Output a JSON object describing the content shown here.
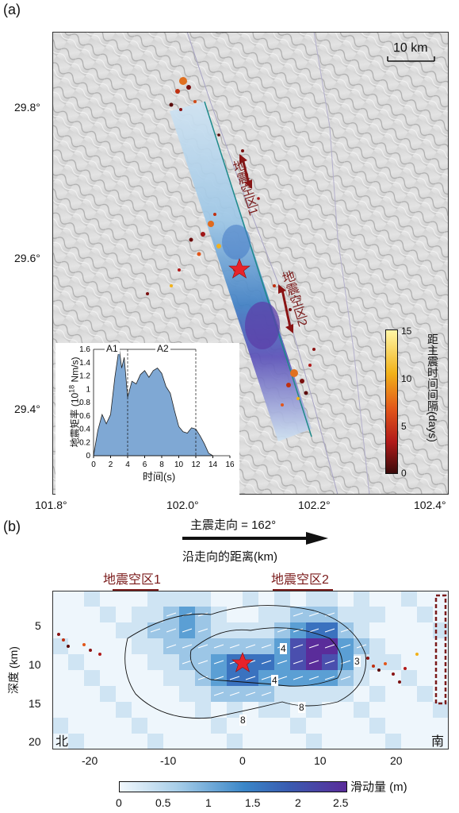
{
  "panel_a": {
    "label": "(a)",
    "lat_ticks": [
      "29.8°",
      "29.6°",
      "29.4°"
    ],
    "lon_ticks": [
      "101.8°",
      "102.0°",
      "102.2°",
      "102.4°"
    ],
    "scale_bar": "10 km",
    "gap1_label": "地震空区1",
    "gap2_label": "地震空区2",
    "colorbar": {
      "title": "距主震时间间隔(days)",
      "ticks": [
        "15",
        "10",
        "5",
        "0"
      ],
      "colors": [
        "#fff6a6",
        "#f2b21a",
        "#e2561a",
        "#b11a1a",
        "#3a0b0b"
      ]
    },
    "inset": {
      "ylabel": "地震矩率 (10",
      "ylabel_exp": "18",
      "ylabel_unit": " Nm/s)",
      "xlabel": "时间(s)",
      "yticks": [
        "1.6",
        "1.4",
        "1.2",
        "1",
        "0.8",
        "0.6",
        "0.4",
        "0.2",
        "0"
      ],
      "xticks": [
        "0",
        "2",
        "4",
        "6",
        "8",
        "10",
        "12",
        "14",
        "16"
      ],
      "phase1": "A1",
      "phase2": "A2"
    }
  },
  "panel_b": {
    "label": "(b)",
    "strike_label": "主震走向 = 162°",
    "distance_label": "沿走向的距离(km)",
    "gap1_label": "地震空区1",
    "gap2_label": "地震空区2",
    "ylabel": "深度 (km)",
    "yticks": [
      "5",
      "10",
      "15",
      "20"
    ],
    "xticks": [
      "-20",
      "-10",
      "0",
      "10",
      "20"
    ],
    "north_label": "北",
    "south_label": "南",
    "contour_labels": [
      "4",
      "4",
      "8",
      "8",
      "3"
    ],
    "colorbar": {
      "title": "滑动量 (m)",
      "ticks": [
        "0",
        "0.5",
        "1",
        "1.5",
        "2",
        "2.5"
      ]
    }
  },
  "chart_data": [
    {
      "type": "area",
      "title": "",
      "xlabel": "时间(s)",
      "ylabel": "地震矩率 (10^18 Nm/s)",
      "xlim": [
        0,
        16
      ],
      "ylim": [
        0,
        1.6
      ],
      "x": [
        0,
        0.5,
        1,
        1.5,
        2,
        2.5,
        3,
        3.3,
        3.6,
        4,
        4.5,
        5,
        5.5,
        6,
        6.5,
        7,
        7.5,
        8,
        8.5,
        9,
        9.5,
        10,
        10.5,
        11,
        11.5,
        12,
        12.5,
        13,
        13.5,
        14
      ],
      "y": [
        0,
        0.38,
        0.62,
        0.48,
        0.62,
        1.18,
        1.62,
        1.32,
        1.48,
        0.88,
        1.12,
        1.08,
        1.22,
        1.28,
        1.18,
        1.28,
        1.32,
        1.24,
        1.04,
        0.94,
        0.68,
        0.44,
        0.36,
        0.34,
        0.42,
        0.4,
        0.3,
        0.18,
        0.04,
        0
      ]
    },
    {
      "type": "heatmap",
      "title": "",
      "xlabel": "沿走向的距离(km)",
      "ylabel": "深度 (km)",
      "xlim": [
        -25,
        25
      ],
      "ylim": [
        20,
        1
      ],
      "colorbar_label": "滑动量 (m)",
      "colorbar_range": [
        0,
        2.5
      ]
    }
  ]
}
